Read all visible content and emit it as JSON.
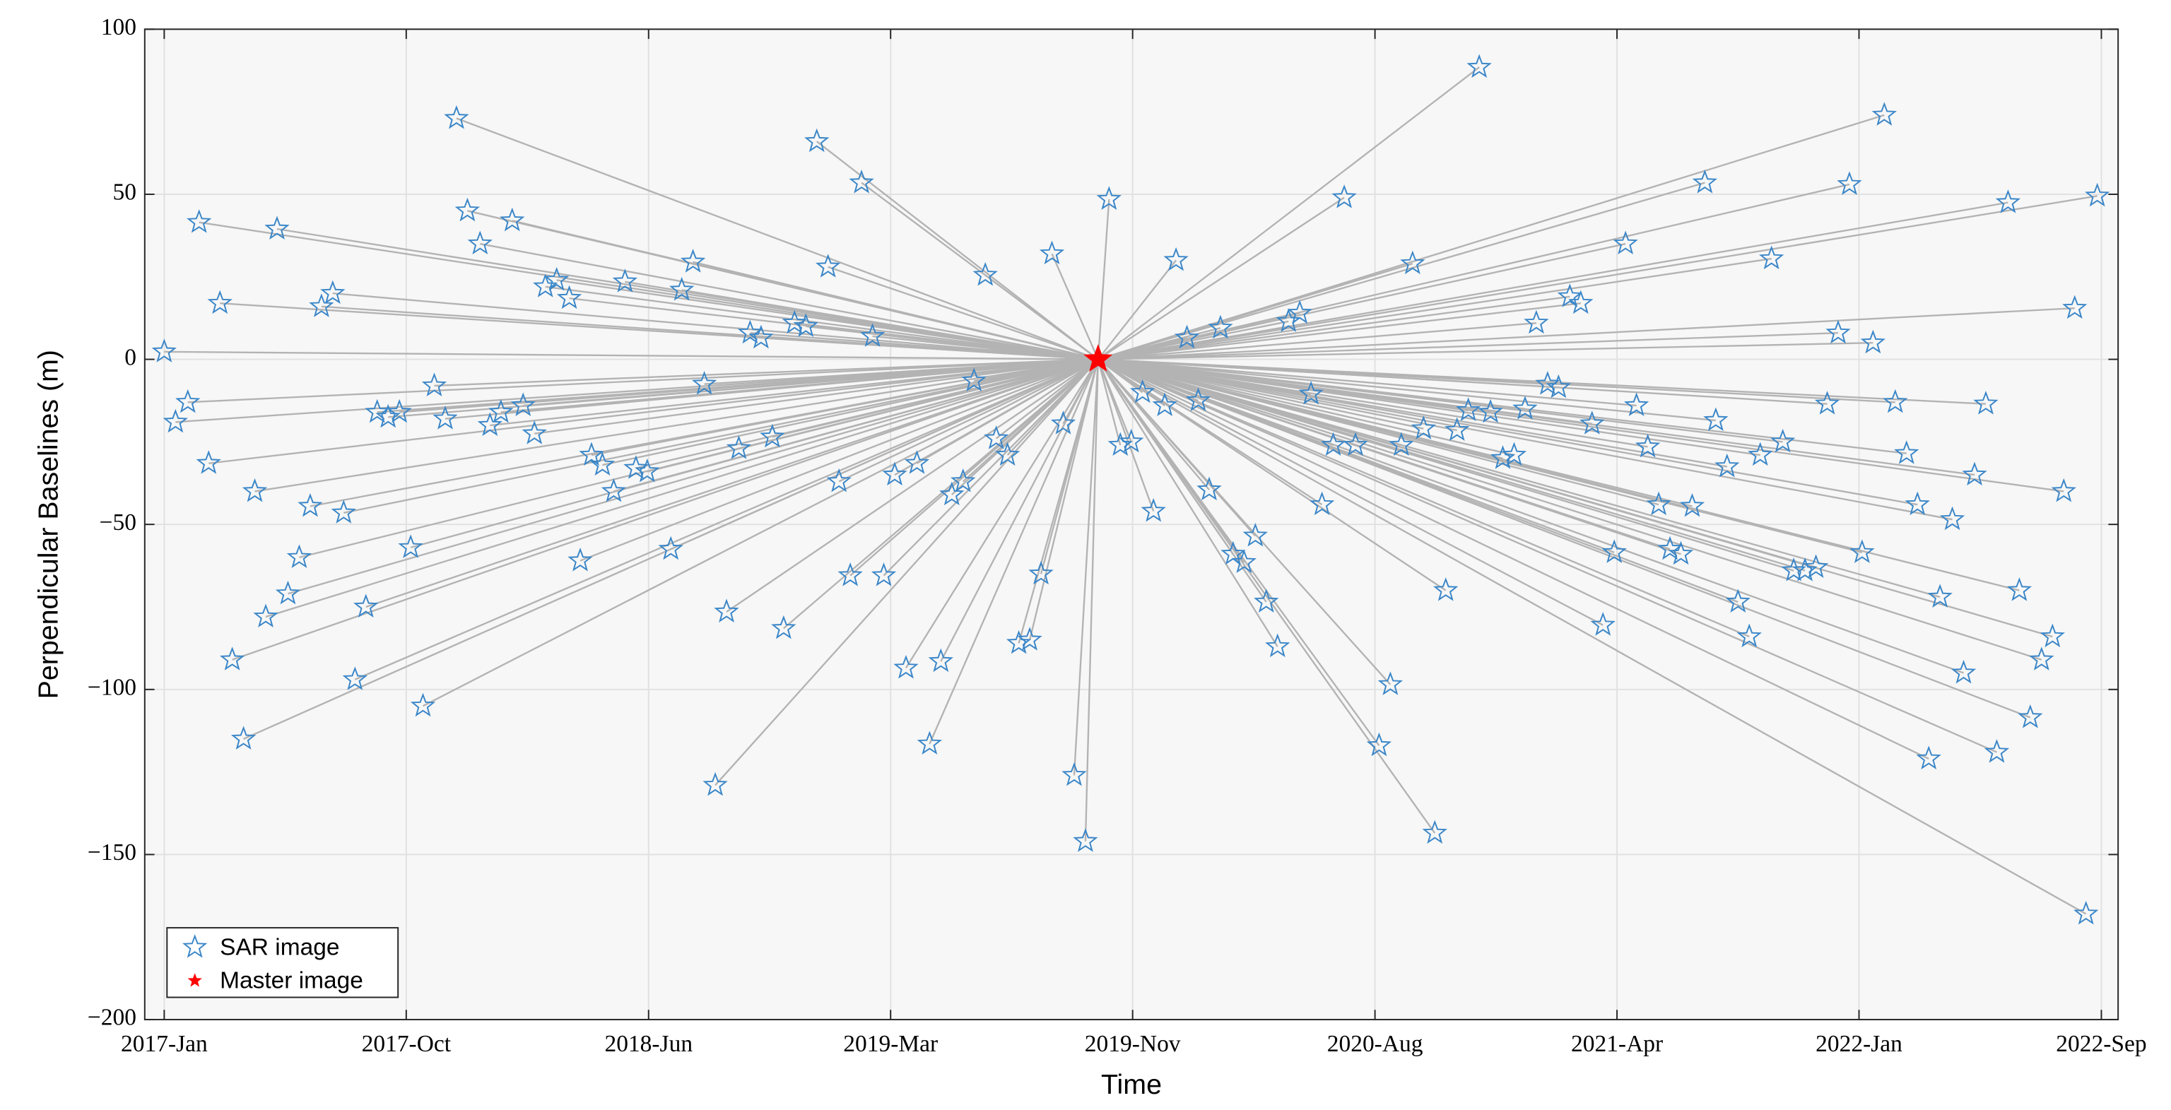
{
  "chart_data": {
    "type": "scatter",
    "xlabel": "Time",
    "ylabel": "Perpendicular Baselines (m)",
    "xlim": [
      2016.943,
      2022.716
    ],
    "ylim": [
      -200,
      100
    ],
    "xticks": [
      {
        "value": 2017.0,
        "label": "2017-Jan"
      },
      {
        "value": 2017.708,
        "label": "2017-Oct"
      },
      {
        "value": 2018.417,
        "label": "2018-Jun"
      },
      {
        "value": 2019.125,
        "label": "2019-Mar"
      },
      {
        "value": 2019.833,
        "label": "2019-Nov"
      },
      {
        "value": 2020.542,
        "label": "2020-Aug"
      },
      {
        "value": 2021.25,
        "label": "2021-Apr"
      },
      {
        "value": 2021.958,
        "label": "2022-Jan"
      },
      {
        "value": 2022.667,
        "label": "2022-Sep"
      }
    ],
    "yticks": [
      {
        "value": -200,
        "label": "−200"
      },
      {
        "value": -150,
        "label": "−150"
      },
      {
        "value": -100,
        "label": "−100"
      },
      {
        "value": -50,
        "label": "−50"
      },
      0,
      50,
      100
    ],
    "grid": true,
    "legend": "southwest",
    "line_color": "#b3b3b3",
    "series": [
      {
        "name": "SAR image",
        "color": "#3a86c8",
        "marker": "star-open",
        "x": [
          2017.0,
          2017.033,
          2017.069,
          2017.102,
          2017.13,
          2017.163,
          2017.199,
          2017.232,
          2017.265,
          2017.297,
          2017.33,
          2017.362,
          2017.395,
          2017.427,
          2017.46,
          2017.493,
          2017.525,
          2017.558,
          2017.59,
          2017.623,
          2017.655,
          2017.688,
          2017.721,
          2017.757,
          2017.79,
          2017.822,
          2017.855,
          2017.887,
          2017.924,
          2017.953,
          2017.985,
          2018.018,
          2018.05,
          2018.083,
          2018.115,
          2018.148,
          2018.185,
          2018.217,
          2018.25,
          2018.282,
          2018.315,
          2018.348,
          2018.38,
          2018.413,
          2018.482,
          2018.514,
          2018.547,
          2018.58,
          2018.612,
          2018.645,
          2018.681,
          2018.714,
          2018.746,
          2018.779,
          2018.812,
          2018.844,
          2018.877,
          2018.909,
          2018.942,
          2018.974,
          2019.007,
          2019.04,
          2019.072,
          2019.105,
          2019.137,
          2019.17,
          2019.202,
          2019.239,
          2019.272,
          2019.304,
          2019.337,
          2019.369,
          2019.402,
          2019.434,
          2019.467,
          2019.5,
          2019.532,
          2019.565,
          2019.597,
          2019.63,
          2019.662,
          2019.695,
          2019.764,
          2019.797,
          2019.829,
          2019.862,
          2019.894,
          2019.927,
          2019.96,
          2019.992,
          2020.025,
          2020.057,
          2020.09,
          2020.127,
          2020.159,
          2020.192,
          2020.224,
          2020.257,
          2020.289,
          2020.322,
          2020.355,
          2020.387,
          2020.42,
          2020.452,
          2020.485,
          2020.554,
          2020.587,
          2020.619,
          2020.652,
          2020.684,
          2020.717,
          2020.749,
          2020.782,
          2020.815,
          2020.847,
          2020.88,
          2020.916,
          2020.949,
          2020.981,
          2021.014,
          2021.047,
          2021.079,
          2021.112,
          2021.144,
          2021.177,
          2021.209,
          2021.242,
          2021.275,
          2021.307,
          2021.34,
          2021.372,
          2021.405,
          2021.437,
          2021.47,
          2021.507,
          2021.539,
          2021.572,
          2021.604,
          2021.637,
          2021.669,
          2021.702,
          2021.735,
          2021.767,
          2021.8,
          2021.832,
          2021.865,
          2021.897,
          2021.93,
          2021.967,
          2021.999,
          2022.032,
          2022.064,
          2022.097,
          2022.129,
          2022.162,
          2022.195,
          2022.231,
          2022.264,
          2022.296,
          2022.329,
          2022.361,
          2022.394,
          2022.427,
          2022.459,
          2022.492,
          2022.524,
          2022.557,
          2022.589,
          2022.622,
          2022.655
        ],
        "values": [
          2.3,
          -19,
          -13,
          41.5,
          -31.5,
          17,
          -91,
          -115,
          -40,
          -78,
          39.5,
          -71,
          -60,
          -44.5,
          16,
          20,
          -46.5,
          -97,
          -75,
          -16,
          -17.5,
          -16,
          -57,
          -105,
          -8,
          -18,
          73,
          45,
          35,
          -20,
          -16,
          42,
          -14,
          -22.5,
          22,
          24,
          18.5,
          -61,
          -29,
          -32,
          -40,
          23.5,
          -33,
          -34,
          -57.5,
          21,
          29.5,
          -7.5,
          -129,
          -76.5,
          -27,
          8,
          6.5,
          -23.5,
          -81.5,
          11,
          10,
          66,
          28,
          -37,
          -65.5,
          53.5,
          7,
          -65.5,
          -35,
          -93.5,
          -31.5,
          -116.5,
          -91.5,
          -41,
          -37,
          -6.5,
          25.5,
          -24,
          -29,
          -86,
          -85,
          -65,
          32,
          -19.5,
          -126,
          -146,
          48.5,
          -26,
          -25,
          -10,
          -46,
          -14,
          30,
          6.5,
          -12.5,
          -39.5,
          9.5,
          -59,
          -61.5,
          -53.5,
          -73.5,
          -87,
          11.5,
          14,
          -10.5,
          -44,
          -26,
          49,
          -26,
          -117,
          -98.5,
          -26,
          29,
          -21,
          -143.5,
          -70,
          -21.5,
          -15.5,
          88.5,
          -16,
          -30,
          -29,
          -15,
          11,
          -7.5,
          -8.5,
          19,
          17,
          -19.5,
          -80.5,
          -58.5,
          35,
          -14,
          -26.5,
          -44,
          -57.5,
          -59,
          -44.5,
          53.5,
          -18.5,
          -32.5,
          -73.5,
          -84,
          -29,
          30.5,
          -25,
          -64,
          -64,
          -63,
          -13.5,
          8,
          53,
          -58.5,
          5,
          74,
          -13,
          -28.5,
          -44,
          -121,
          -72,
          -48.5,
          -95,
          -35,
          -13.5,
          -119,
          47.5,
          -70,
          -108.5,
          -91,
          -84,
          -40,
          15.5,
          -168,
          49.5
        ]
      },
      {
        "name": "Master image",
        "color": "#ff0000",
        "marker": "star-filled",
        "x": [
          2019.732
        ],
        "values": [
          0
        ]
      }
    ]
  }
}
